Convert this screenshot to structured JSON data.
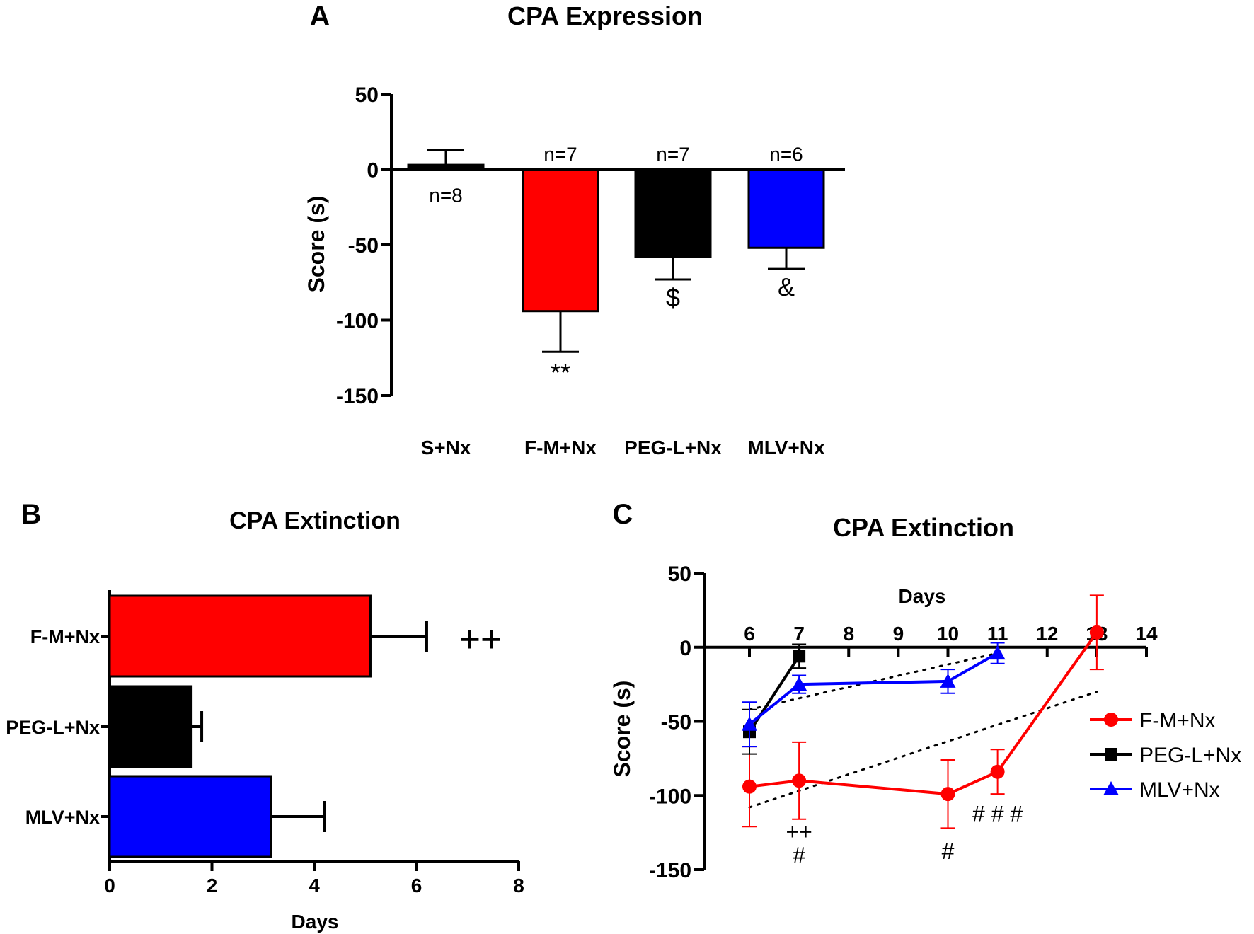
{
  "chart_data": [
    {
      "panel": "A",
      "type": "bar",
      "title": "CPA Expression",
      "ylabel": "Score (s)",
      "xlabel": "",
      "ylim": [
        -150,
        50
      ],
      "yticks": [
        50,
        0,
        -50,
        -100,
        -150
      ],
      "categories": [
        "S+Nx",
        "F-M+Nx",
        "PEG-L+Nx",
        "MLV+Nx"
      ],
      "values": [
        3,
        -94,
        -58,
        -52
      ],
      "errors": [
        10,
        27,
        15,
        14
      ],
      "colors": [
        "#000000",
        "#ff0000",
        "#000000",
        "#0000ff"
      ],
      "n_labels": [
        "n=8",
        "n=7",
        "n=7",
        "n=6"
      ],
      "annotations": [
        "",
        "**",
        "$",
        "&"
      ]
    },
    {
      "panel": "B",
      "type": "bar",
      "orientation": "horizontal",
      "title": "CPA Extinction",
      "xlabel": "Days",
      "ylabel": "",
      "xlim": [
        0,
        8
      ],
      "xticks": [
        0,
        2,
        4,
        6,
        8
      ],
      "categories": [
        "F-M+Nx",
        "PEG-L+Nx",
        "MLV+Nx"
      ],
      "values": [
        5.1,
        1.6,
        3.15
      ],
      "errors": [
        1.1,
        0.2,
        1.05
      ],
      "colors": [
        "#ff0000",
        "#000000",
        "#0000ff"
      ],
      "annotations": [
        "++",
        "",
        ""
      ]
    },
    {
      "panel": "C",
      "type": "line",
      "title": "CPA Extinction",
      "xlabel": "Days",
      "ylabel": "Score (s)",
      "xlim": [
        5.3,
        14
      ],
      "ylim": [
        -150,
        50
      ],
      "xticks": [
        6,
        7,
        8,
        9,
        10,
        11,
        12,
        13,
        14
      ],
      "yticks": [
        50,
        0,
        -50,
        -100,
        -150
      ],
      "series": [
        {
          "name": "F-M+Nx",
          "color": "#ff0000",
          "marker": "circle",
          "x": [
            6,
            7,
            10,
            11,
            13
          ],
          "y": [
            -94,
            -90,
            -99,
            -84,
            10
          ],
          "err": [
            27,
            26,
            23,
            15,
            25
          ]
        },
        {
          "name": "PEG-L+Nx",
          "color": "#000000",
          "marker": "square",
          "x": [
            6,
            7
          ],
          "y": [
            -57,
            -6
          ],
          "err": [
            15,
            8
          ]
        },
        {
          "name": "MLV+Nx",
          "color": "#0000ff",
          "marker": "triangle",
          "x": [
            6,
            7,
            10,
            11
          ],
          "y": [
            -52,
            -25,
            -23,
            -4
          ],
          "err": [
            15,
            6,
            8,
            7
          ]
        }
      ],
      "trendlines": [
        {
          "x": [
            6,
            13
          ],
          "y": [
            -108,
            -30
          ]
        },
        {
          "x": [
            6,
            11
          ],
          "y": [
            -42,
            -4
          ]
        }
      ],
      "annotations": [
        {
          "x": 7,
          "y": -124,
          "text": "++"
        },
        {
          "x": 7,
          "y": -140,
          "text": "#"
        },
        {
          "x": 10,
          "y": -137,
          "text": "#"
        },
        {
          "x": 11,
          "y": -112,
          "text": "# # #"
        }
      ]
    }
  ],
  "panel_letters": [
    "A",
    "B",
    "C"
  ]
}
